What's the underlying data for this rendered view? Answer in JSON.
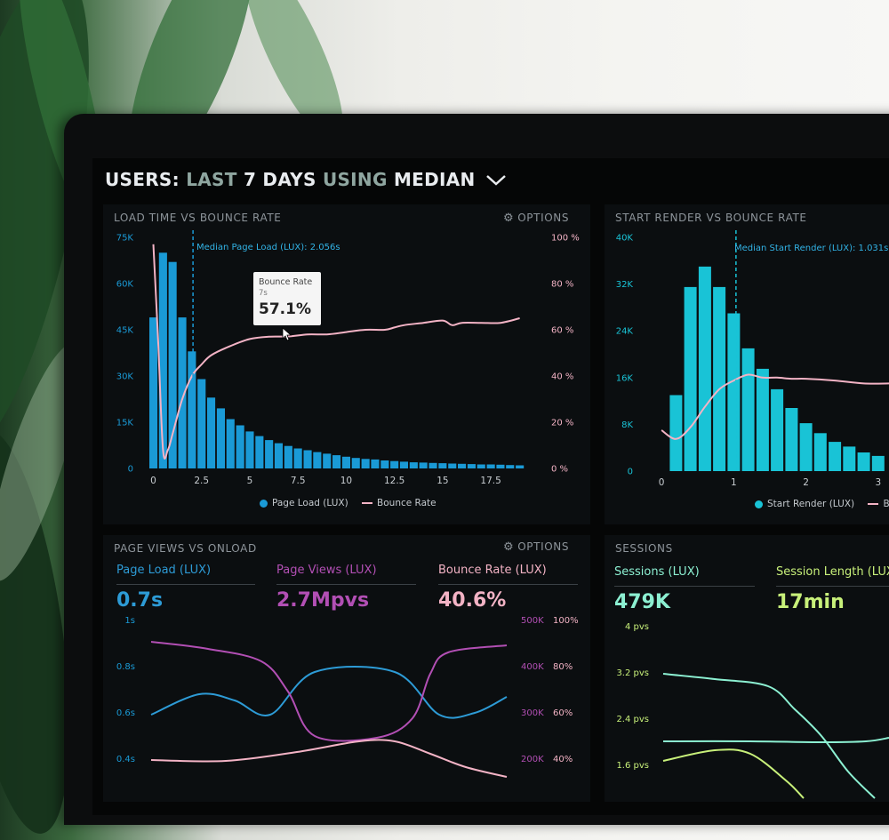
{
  "header": {
    "part1": "USERS:",
    "part2": "LAST",
    "part3": "7 DAYS",
    "part4": "USING",
    "part5": "MEDIAN",
    "chevron_icon": "chevron-down-icon"
  },
  "colors": {
    "blue": "#1a9ad6",
    "cyan": "#19c3d6",
    "pink": "#f3b3c5",
    "purple": "#b24fb4",
    "mint": "#8cf0d2",
    "lime": "#c8f07a"
  },
  "panels": {
    "load_vs_bounce": {
      "title": "LOAD TIME VS BOUNCE RATE",
      "options": "OPTIONS",
      "median_label": "Median Page Load (LUX): 2.056s",
      "tooltip": {
        "title": "Bounce Rate",
        "sub": "7s",
        "value": "57.1%"
      },
      "legend": {
        "series1": "Page Load (LUX)",
        "series2": "Bounce Rate"
      }
    },
    "render_vs_bounce": {
      "title": "START RENDER VS BOUNCE RATE",
      "median_label": "Median Start Render (LUX): 1.031s",
      "legend": {
        "series1": "Start Render (LUX)",
        "series2": "B"
      }
    },
    "pageviews_vs_onload": {
      "title": "PAGE VIEWS VS ONLOAD",
      "options": "OPTIONS",
      "metrics": [
        {
          "label": "Page Load (LUX)",
          "value": "0.7s"
        },
        {
          "label": "Page Views (LUX)",
          "value": "2.7Mpvs"
        },
        {
          "label": "Bounce Rate (LUX)",
          "value": "40.6%"
        }
      ]
    },
    "sessions": {
      "title": "SESSIONS",
      "metrics": [
        {
          "label": "Sessions (LUX)",
          "value": "479K"
        },
        {
          "label": "Session Length (LUX",
          "value": "17min"
        }
      ]
    }
  },
  "chart_data": [
    {
      "type": "bar",
      "title": "LOAD TIME VS BOUNCE RATE",
      "x_ticks": [
        "0",
        "2.5",
        "5",
        "7.5",
        "10",
        "12.5",
        "15",
        "17.5"
      ],
      "y_ticks_left": [
        "75K",
        "60K",
        "45K",
        "30K",
        "15K",
        "0"
      ],
      "y_ticks_right": [
        "100 %",
        "80 %",
        "60 %",
        "40 %",
        "20 %",
        "0 %"
      ],
      "ylim_left": [
        0,
        75000
      ],
      "ylim_right": [
        0,
        100
      ],
      "xlim": [
        -0.3,
        19.8
      ],
      "median_x": 2.056,
      "series": [
        {
          "name": "Page Load (LUX)",
          "type": "bar",
          "x": [
            0,
            0.5,
            1,
            1.5,
            2,
            2.5,
            3,
            3.5,
            4,
            4.5,
            5,
            5.5,
            6,
            6.5,
            7,
            7.5,
            8,
            8.5,
            9,
            9.5,
            10,
            10.5,
            11,
            11.5,
            12,
            12.5,
            13,
            13.5,
            14,
            14.5,
            15,
            15.5,
            16,
            16.5,
            17,
            17.5,
            18,
            18.5,
            19
          ],
          "values": [
            49000,
            70000,
            67000,
            49000,
            38000,
            29000,
            23000,
            19500,
            16000,
            14000,
            12000,
            10500,
            9200,
            8200,
            7300,
            6500,
            5900,
            5300,
            4800,
            4300,
            3800,
            3400,
            3100,
            2900,
            2600,
            2400,
            2200,
            2000,
            1900,
            1800,
            1700,
            1600,
            1500,
            1400,
            1300,
            1300,
            1200,
            1100,
            1000
          ]
        },
        {
          "name": "Bounce Rate",
          "type": "line",
          "x": [
            0,
            0.25,
            0.5,
            0.75,
            1,
            1.5,
            2,
            2.5,
            3,
            4,
            5,
            6,
            7,
            8,
            9,
            10,
            11,
            12,
            12.5,
            13,
            14,
            15,
            15.5,
            16,
            17,
            18,
            19
          ],
          "values": [
            97,
            55,
            8,
            8,
            15,
            30,
            40,
            45,
            49,
            53,
            56,
            57,
            57.1,
            58,
            58,
            59,
            60,
            60,
            61,
            62,
            63,
            64,
            62,
            63,
            63,
            63,
            65
          ]
        }
      ]
    },
    {
      "type": "bar",
      "title": "START RENDER VS BOUNCE RATE",
      "x_ticks": [
        "0",
        "1",
        "2",
        "3"
      ],
      "y_ticks_left": [
        "40K",
        "32K",
        "24K",
        "16K",
        "8K",
        "0"
      ],
      "ylim_left": [
        0,
        40000
      ],
      "xlim": [
        -0.1,
        3.15
      ],
      "median_x": 1.031,
      "series": [
        {
          "name": "Start Render (LUX)",
          "type": "bar",
          "x": [
            0.2,
            0.4,
            0.6,
            0.8,
            1.0,
            1.2,
            1.4,
            1.6,
            1.8,
            2.0,
            2.2,
            2.4,
            2.6,
            2.8,
            3.0
          ],
          "values": [
            13000,
            31500,
            35000,
            31500,
            27000,
            21000,
            17500,
            14000,
            10800,
            8200,
            6500,
            5000,
            4200,
            3200,
            2600
          ]
        },
        {
          "name": "B",
          "type": "line",
          "x": [
            0,
            0.2,
            0.4,
            0.6,
            0.8,
            1.0,
            1.2,
            1.4,
            1.6,
            1.8,
            2.0,
            2.4,
            2.8,
            3.15
          ],
          "values": [
            7000,
            5500,
            7500,
            11000,
            14000,
            15500,
            16500,
            16000,
            16000,
            15800,
            15800,
            15500,
            15000,
            15000
          ]
        }
      ]
    },
    {
      "type": "line",
      "title": "PAGE VIEWS VS ONLOAD",
      "y_ticks_left": [
        "1s",
        "0.8s",
        "0.6s",
        "0.4s"
      ],
      "y_ticks_right_1": [
        "500K",
        "400K",
        "300K",
        "200K"
      ],
      "y_ticks_right_2": [
        "100%",
        "80%",
        "60%",
        "40%"
      ]
    },
    {
      "type": "line",
      "title": "SESSIONS",
      "y_ticks_left": [
        "4 pvs",
        "3.2 pvs",
        "2.4 pvs",
        "1.6 pvs"
      ]
    }
  ]
}
